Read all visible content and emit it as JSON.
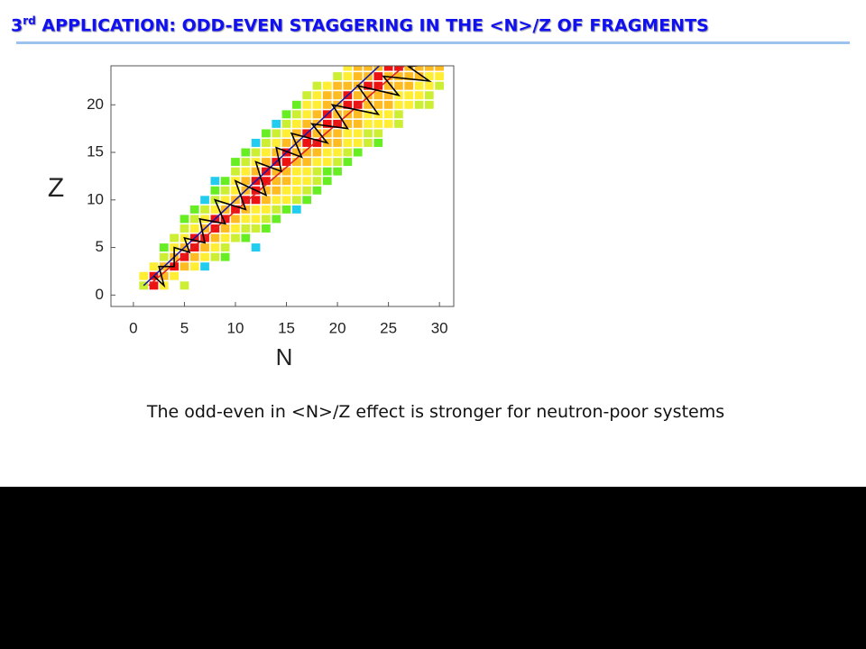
{
  "slide": {
    "title_number": "3",
    "title_sup": "rd",
    "title_rest": " APPLICATION: ODD-EVEN STAGGERING IN THE <N>/Z OF FRAGMENTS",
    "caption": "The odd-even in <N>/Z effect is stronger for neutron-poor systems"
  },
  "chart_data": {
    "type": "heatmap",
    "x_label": "N",
    "y_label": "Z",
    "xlim": [
      -2.2,
      31.4
    ],
    "ylim": [
      -1.2,
      24.1
    ],
    "xticks": [
      0,
      5,
      10,
      15,
      20,
      25,
      30
    ],
    "yticks": [
      0,
      5,
      10,
      15,
      20
    ],
    "level_colors": [
      "#22ccee",
      "#66ee22",
      "#ccee33",
      "#ffee33",
      "#ffbb22",
      "#ee1111"
    ],
    "rows": [
      {
        "z": 1,
        "n0": 1,
        "levels": [
          3,
          6,
          4,
          null,
          3
        ]
      },
      {
        "z": 2,
        "n0": 1,
        "levels": [
          4,
          6,
          5,
          4
        ]
      },
      {
        "z": 3,
        "n0": 2,
        "levels": [
          4,
          5,
          6,
          5,
          4,
          1
        ]
      },
      {
        "z": 4,
        "n0": 3,
        "levels": [
          3,
          5,
          6,
          5,
          4,
          3,
          2
        ]
      },
      {
        "z": 5,
        "n0": 3,
        "levels": [
          2,
          4,
          5,
          6,
          5,
          4,
          3,
          null,
          null,
          1
        ]
      },
      {
        "z": 6,
        "n0": 4,
        "levels": [
          3,
          4,
          6,
          6,
          5,
          4,
          3,
          2
        ]
      },
      {
        "z": 7,
        "n0": 5,
        "levels": [
          3,
          4,
          5,
          6,
          5,
          4,
          3,
          3,
          2
        ]
      },
      {
        "z": 8,
        "n0": 5,
        "levels": [
          2,
          3,
          4,
          6,
          6,
          5,
          4,
          4,
          3,
          2
        ]
      },
      {
        "z": 9,
        "n0": 6,
        "levels": [
          2,
          3,
          4,
          5,
          6,
          5,
          4,
          4,
          3,
          2,
          1
        ]
      },
      {
        "z": 10,
        "n0": 7,
        "levels": [
          1,
          3,
          4,
          5,
          6,
          6,
          5,
          4,
          4,
          3,
          2
        ]
      },
      {
        "z": 11,
        "n0": 8,
        "levels": [
          2,
          3,
          4,
          5,
          6,
          5,
          5,
          4,
          4,
          3,
          2
        ]
      },
      {
        "z": 12,
        "n0": 8,
        "levels": [
          1,
          2,
          4,
          5,
          6,
          6,
          5,
          5,
          4,
          4,
          3,
          2
        ]
      },
      {
        "z": 13,
        "n0": 10,
        "levels": [
          3,
          4,
          5,
          6,
          5,
          5,
          4,
          4,
          3,
          2,
          2
        ]
      },
      {
        "z": 14,
        "n0": 10,
        "levels": [
          2,
          3,
          4,
          5,
          6,
          6,
          5,
          5,
          4,
          4,
          3,
          2
        ]
      },
      {
        "z": 15,
        "n0": 11,
        "levels": [
          2,
          3,
          4,
          5,
          6,
          5,
          5,
          5,
          4,
          4,
          3,
          2
        ]
      },
      {
        "z": 16,
        "n0": 12,
        "levels": [
          1,
          3,
          4,
          5,
          5,
          6,
          6,
          5,
          5,
          4,
          4,
          3,
          2
        ]
      },
      {
        "z": 17,
        "n0": 13,
        "levels": [
          2,
          3,
          4,
          5,
          6,
          5,
          5,
          5,
          4,
          4,
          3,
          3
        ]
      },
      {
        "z": 18,
        "n0": 14,
        "levels": [
          1,
          3,
          4,
          5,
          5,
          6,
          6,
          5,
          5,
          4,
          4,
          4,
          3
        ]
      },
      {
        "z": 19,
        "n0": 15,
        "levels": [
          2,
          3,
          4,
          5,
          6,
          5,
          5,
          5,
          4,
          4,
          4,
          3
        ]
      },
      {
        "z": 20,
        "n0": 16,
        "levels": [
          2,
          4,
          4,
          5,
          5,
          6,
          6,
          5,
          5,
          5,
          4,
          4,
          3,
          3
        ]
      },
      {
        "z": 21,
        "n0": 17,
        "levels": [
          3,
          4,
          5,
          5,
          6,
          5,
          5,
          5,
          5,
          4,
          4,
          4,
          3
        ]
      },
      {
        "z": 22,
        "n0": 18,
        "levels": [
          3,
          4,
          5,
          5,
          5,
          6,
          6,
          5,
          5,
          5,
          4,
          4,
          3
        ]
      },
      {
        "z": 23,
        "n0": 20,
        "levels": [
          3,
          4,
          5,
          5,
          6,
          5,
          5,
          5,
          5,
          4,
          4
        ]
      },
      {
        "z": 24,
        "n0": 21,
        "levels": [
          4,
          5,
          5,
          5,
          6,
          6,
          5,
          5,
          5,
          5
        ]
      }
    ],
    "lines": [
      {
        "color": "#dd2222",
        "x": [
          1.5,
          27
        ],
        "y": [
          1,
          24.5
        ]
      },
      {
        "color": "#1a1aa0",
        "x": [
          1,
          25
        ],
        "y": [
          1,
          25
        ]
      },
      {
        "color": "#000000",
        "x": [
          2,
          3,
          2.5,
          4,
          4,
          5.5,
          5,
          7,
          6.5,
          9,
          8,
          11,
          10,
          13,
          12,
          14.5,
          14,
          16.5,
          15.5,
          19,
          17.5,
          21,
          19.5,
          24,
          22,
          26,
          24.5,
          29,
          27,
          30.5
        ],
        "y": [
          2,
          1,
          3,
          3,
          5,
          4.5,
          6,
          5.5,
          8,
          7.5,
          10,
          9,
          12,
          10.5,
          14,
          13,
          15.5,
          14.5,
          17,
          16,
          18,
          17.5,
          20,
          19,
          22,
          21,
          23,
          22.5,
          24,
          24.5
        ]
      }
    ]
  }
}
